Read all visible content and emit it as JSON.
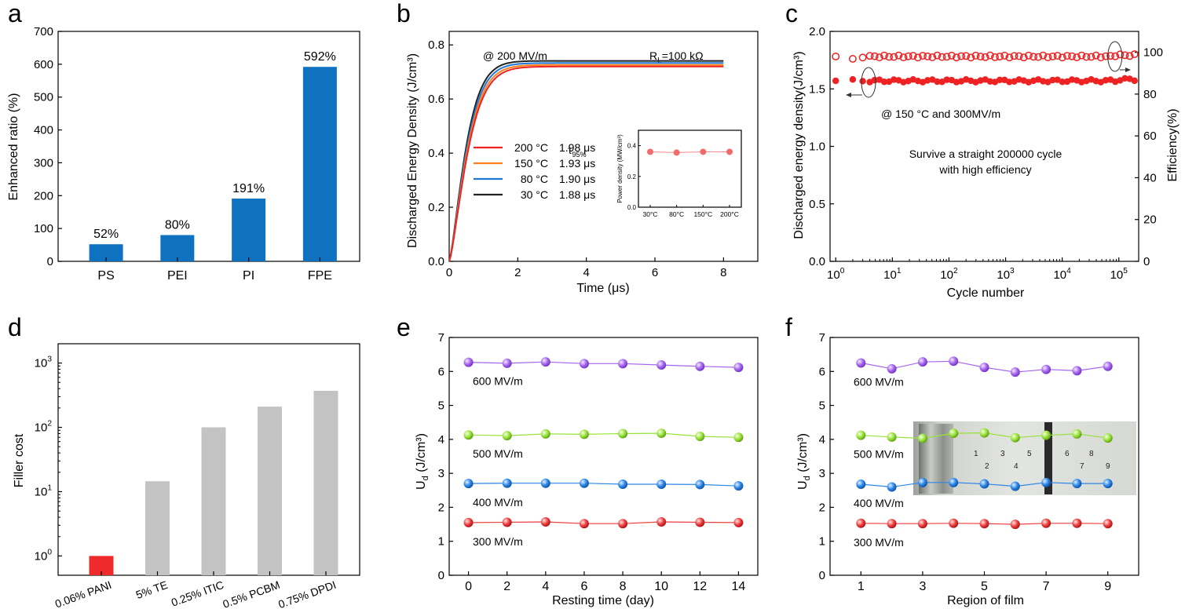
{
  "colors": {
    "bar_blue": "#0e72c0",
    "bar_gray": "#c3c3c3",
    "bar_red": "#ee2a2a",
    "red": "#ee2222",
    "orange": "#ff7f1a",
    "blue": "#1e78d8",
    "black": "#222222",
    "purple": "#a565ec",
    "green": "#98e23a",
    "ball_red": "#ee3d3d",
    "ball_blue": "#2c86e6"
  },
  "chart_data": [
    {
      "panel": "a",
      "type": "bar",
      "categories": [
        "PS",
        "PEI",
        "PI",
        "FPE"
      ],
      "values": [
        52,
        80,
        191,
        592
      ],
      "value_labels": [
        "52%",
        "80%",
        "191%",
        "592%"
      ],
      "ylabel": "Enhanced ratio (%)",
      "ylim": [
        0,
        700
      ],
      "yticks": [
        "0",
        "100",
        "200",
        "300",
        "400",
        "500",
        "600",
        "700"
      ]
    },
    {
      "panel": "b",
      "type": "line",
      "xlabel": "Time (μs)",
      "ylabel": "Discharged Energy Density (J/cm³)",
      "xlim": [
        0,
        9
      ],
      "ylim": [
        0,
        0.85
      ],
      "xticks": [
        "0",
        "2",
        "4",
        "6",
        "8"
      ],
      "yticks": [
        "0.0",
        "0.2",
        "0.4",
        "0.6",
        "0.8"
      ],
      "annotation_field": "@ 200 MV/m",
      "annotation_rl": "R",
      "annotation_rl_sub": "L",
      "annotation_rl_value": "=100 kΩ",
      "tau_header": "τ",
      "tau_header_sub": "95%",
      "series": [
        {
          "name": "200 °C",
          "tau": "1.98 μs",
          "plateau": 0.72,
          "color_key": "red"
        },
        {
          "name": "150 °C",
          "tau": "1.93 μs",
          "plateau": 0.726,
          "color_key": "orange"
        },
        {
          "name": "80 °C",
          "tau": "1.90 μs",
          "plateau": 0.733,
          "color_key": "blue"
        },
        {
          "name": "30 °C",
          "tau": "1.88 μs",
          "plateau": 0.741,
          "color_key": "black"
        }
      ],
      "inset": {
        "ylabel": "Power density (MW/cm³)",
        "categories": [
          "30°C",
          "80°C",
          "150°C",
          "200°C"
        ],
        "values": [
          0.36,
          0.355,
          0.36,
          0.36
        ],
        "ylim": [
          0,
          0.5
        ],
        "yticks": [
          "0.0",
          "0.2",
          "0.4"
        ]
      }
    },
    {
      "panel": "c",
      "type": "scatter",
      "xlabel": "Cycle number",
      "ylabel_left": "Discharged energy density(J/cm³)",
      "ylabel_right": "Efficiency(%)",
      "xscale": "log",
      "xlim_log10": [
        -0.1,
        5.35
      ],
      "xticks": [
        {
          "base": "10",
          "exp": "0"
        },
        {
          "base": "10",
          "exp": "1"
        },
        {
          "base": "10",
          "exp": "2"
        },
        {
          "base": "10",
          "exp": "3"
        },
        {
          "base": "10",
          "exp": "4"
        },
        {
          "base": "10",
          "exp": "5"
        }
      ],
      "ylim_left": [
        0,
        2.0
      ],
      "yticks_left": [
        "0.0",
        "0.5",
        "1.0",
        "1.5",
        "2.0"
      ],
      "ylim_right": [
        0,
        110
      ],
      "yticks_right": [
        "0",
        "20",
        "40",
        "60",
        "80",
        "100"
      ],
      "energy_value": 1.57,
      "efficiency_value": 98,
      "annotation_condition": "@ 150 °C and 300MV/m",
      "annotation_line1": "Survive a straight 200000 cycle",
      "annotation_line2": "with high efficiency"
    },
    {
      "panel": "d",
      "type": "bar",
      "yscale": "log",
      "categories": [
        "0.06% PANI",
        "5% TE",
        "0.25% ITIC",
        "0.5% PCBM",
        "0.75% DPDI"
      ],
      "values": [
        1,
        14.5,
        100,
        210,
        370
      ],
      "ylabel": "Filler cost",
      "ylim_log10": [
        -0.3,
        3.3
      ],
      "yticks": [
        {
          "base": "10",
          "exp": "0"
        },
        {
          "base": "10",
          "exp": "1"
        },
        {
          "base": "10",
          "exp": "2"
        },
        {
          "base": "10",
          "exp": "3"
        }
      ]
    },
    {
      "panel": "e",
      "type": "line",
      "xlabel": "Resting time (day)",
      "ylabel": "U",
      "ylabel_sub": "d",
      "ylabel_unit": " (J/cm³)",
      "x": [
        0,
        2,
        4,
        6,
        8,
        10,
        12,
        14
      ],
      "xlim": [
        -1,
        15
      ],
      "ylim": [
        0,
        7
      ],
      "xticks": [
        "0",
        "2",
        "4",
        "6",
        "8",
        "10",
        "12",
        "14"
      ],
      "yticks": [
        "0",
        "1",
        "2",
        "3",
        "4",
        "5",
        "6",
        "7"
      ],
      "series": [
        {
          "name": "600 MV/m",
          "values": [
            6.27,
            6.24,
            6.28,
            6.23,
            6.23,
            6.19,
            6.15,
            6.12
          ],
          "color_key": "purple"
        },
        {
          "name": "500 MV/m",
          "values": [
            4.13,
            4.11,
            4.16,
            4.15,
            4.17,
            4.18,
            4.09,
            4.06
          ],
          "color_key": "green"
        },
        {
          "name": "400 MV/m",
          "values": [
            2.7,
            2.71,
            2.71,
            2.71,
            2.68,
            2.68,
            2.67,
            2.63
          ],
          "color_key": "ball_blue"
        },
        {
          "name": "300 MV/m",
          "values": [
            1.55,
            1.56,
            1.57,
            1.52,
            1.52,
            1.57,
            1.56,
            1.55
          ],
          "color_key": "ball_red"
        }
      ]
    },
    {
      "panel": "f",
      "type": "line",
      "xlabel": "Region of  film",
      "ylabel": "U",
      "ylabel_sub": "d",
      "ylabel_unit": " (J/cm³)",
      "x": [
        1,
        2,
        3,
        4,
        5,
        6,
        7,
        8,
        9
      ],
      "xlim": [
        0,
        10
      ],
      "ylim": [
        0,
        7
      ],
      "xticks": [
        "1",
        "3",
        "5",
        "7",
        "9"
      ],
      "xtick_values": [
        1,
        3,
        5,
        7,
        9
      ],
      "yticks": [
        "0",
        "1",
        "2",
        "3",
        "4",
        "5",
        "6",
        "7"
      ],
      "series": [
        {
          "name": "600 MV/m",
          "values": [
            6.25,
            6.08,
            6.28,
            6.3,
            6.12,
            5.98,
            6.06,
            6.02,
            6.15
          ],
          "color_key": "purple"
        },
        {
          "name": "500 MV/m",
          "values": [
            4.12,
            4.07,
            4.03,
            4.18,
            4.19,
            4.05,
            4.12,
            4.16,
            4.04
          ],
          "color_key": "green"
        },
        {
          "name": "400 MV/m",
          "values": [
            2.68,
            2.6,
            2.73,
            2.73,
            2.69,
            2.62,
            2.73,
            2.7,
            2.7
          ],
          "color_key": "ball_blue"
        },
        {
          "name": "300 MV/m",
          "values": [
            1.53,
            1.52,
            1.52,
            1.53,
            1.52,
            1.5,
            1.53,
            1.53,
            1.52
          ],
          "color_key": "ball_red"
        }
      ],
      "photo_region_labels": [
        "1",
        "2",
        "3",
        "4",
        "5",
        "6",
        "7",
        "8",
        "9"
      ]
    }
  ],
  "panel_letters": [
    "a",
    "b",
    "c",
    "d",
    "e",
    "f"
  ]
}
